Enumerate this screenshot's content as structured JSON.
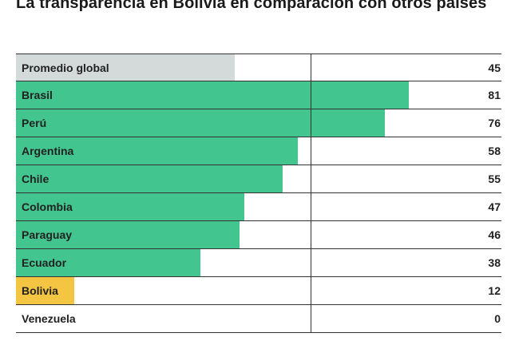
{
  "title": "La transparencia en Bolivia en comparación con otros países",
  "colors": {
    "default": "#42c58f",
    "global": "#d4dada",
    "highlight": "#f4c542"
  },
  "chart_data": {
    "type": "bar",
    "orientation": "horizontal",
    "title": "La transparencia en Bolivia en comparación con otros países",
    "categories": [
      "Promedio global",
      "Brasil",
      "Perú",
      "Argentina",
      "Chile",
      "Colombia",
      "Paraguay",
      "Ecuador",
      "Bolivia",
      "Venezuela"
    ],
    "values": [
      45,
      81,
      76,
      58,
      55,
      47,
      46,
      38,
      12,
      0
    ],
    "xlim": [
      0,
      100
    ],
    "grid": false,
    "legend": "none",
    "bar_colors": [
      "global",
      "default",
      "default",
      "default",
      "default",
      "default",
      "default",
      "default",
      "highlight",
      "default"
    ]
  }
}
